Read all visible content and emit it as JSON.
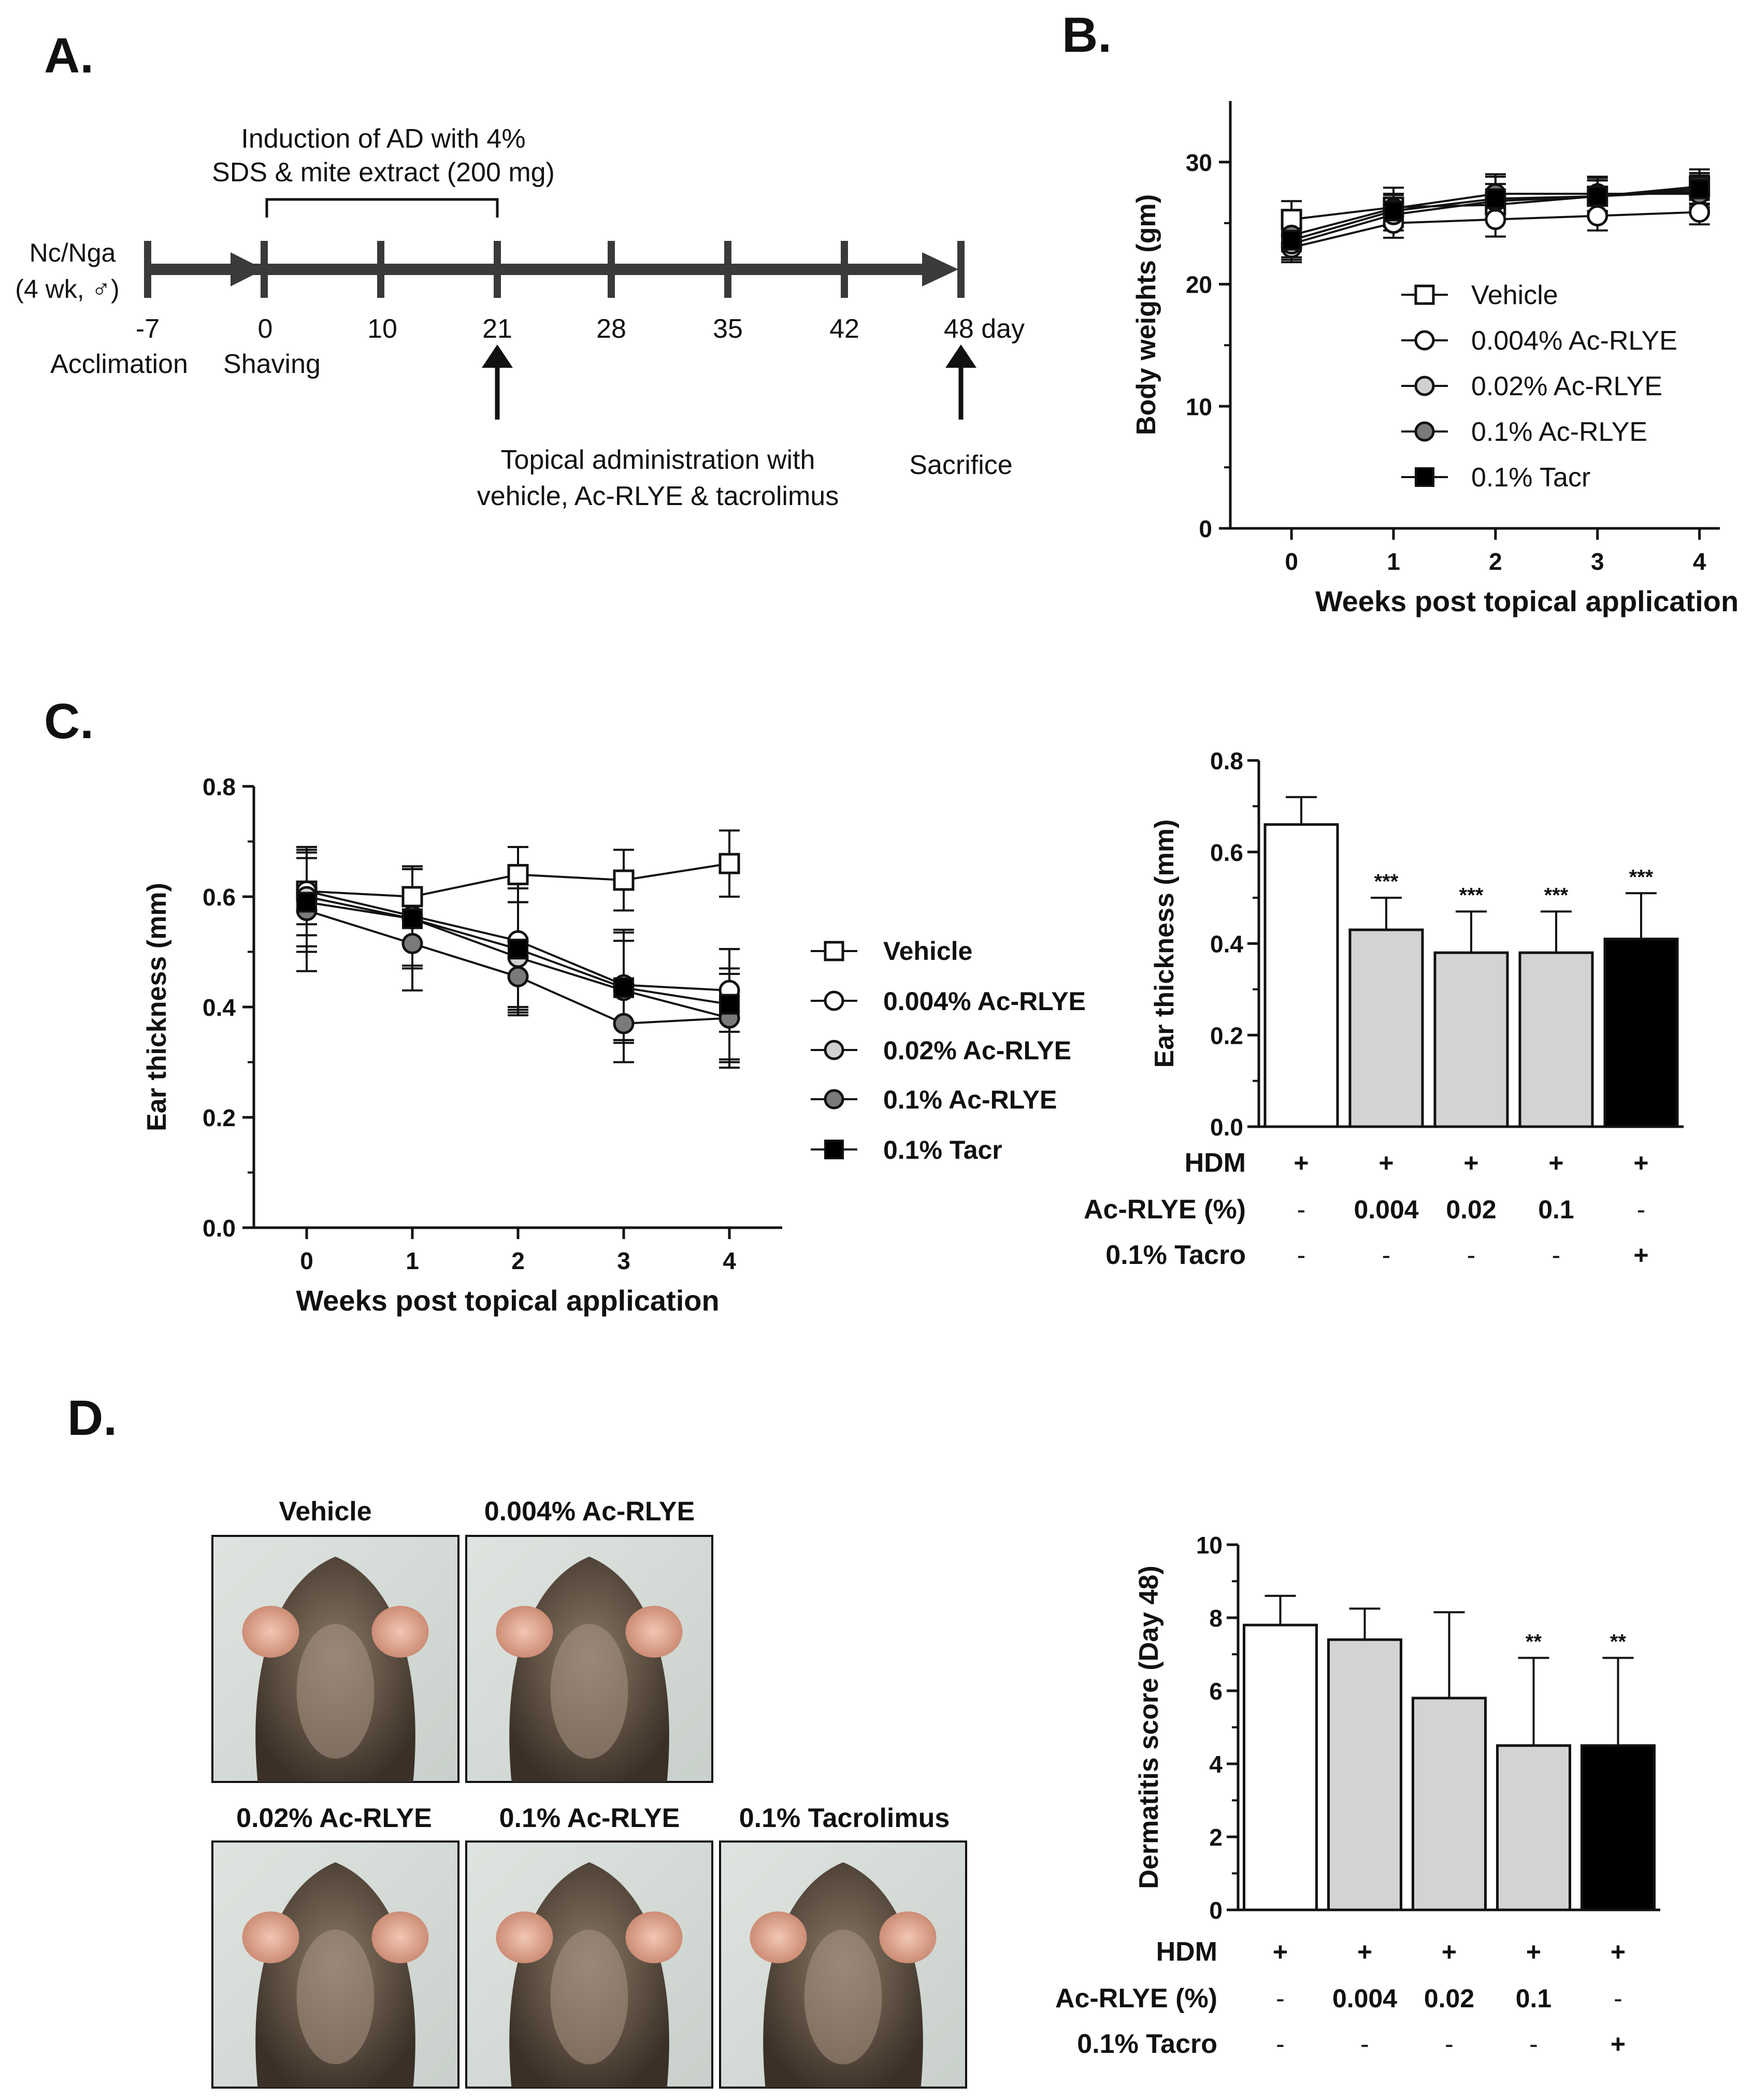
{
  "panels": {
    "A": "A.",
    "B": "B.",
    "C": "C.",
    "D": "D."
  },
  "timeline": {
    "subject_line1": "Nc/Nga",
    "subject_line2": "(4 wk, ♂)",
    "induction_line1": "Induction of AD with 4%",
    "induction_line2": "SDS & mite extract (200 mg)",
    "ticks": [
      "-7",
      "0",
      "10",
      "21",
      "28",
      "35",
      "42",
      "48 day"
    ],
    "acclimation": "Acclimation",
    "shaving": "Shaving",
    "topical_line1": "Topical administration with",
    "topical_line2": "vehicle, Ac-RLYE & tacrolimus",
    "sacrifice": "Sacrifice"
  },
  "legend": {
    "vehicle": "Vehicle",
    "ac004": "0.004% Ac-RLYE",
    "ac002": "0.02% Ac-RLYE",
    "ac01": "0.1% Ac-RLYE",
    "tacr": "0.1% Tacr"
  },
  "colors": {
    "vehicle": "#ffffff",
    "ac004": "#ffffff",
    "ac002": "#d0d0d0",
    "ac01": "#7a7a7a",
    "tacr": "#000000",
    "bar_gray": "#d3d3d3"
  },
  "condition_table": {
    "hdm_label": "HDM",
    "ac_label": "Ac-RLYE (%)",
    "tacro_label": "0.1% Tacro",
    "hdm": [
      "+",
      "+",
      "+",
      "+",
      "+"
    ],
    "ac": [
      "-",
      "0.004",
      "0.02",
      "0.1",
      "-"
    ],
    "tacro": [
      "-",
      "-",
      "-",
      "-",
      "+"
    ]
  },
  "photos": {
    "labels": [
      "Vehicle",
      "0.004% Ac-RLYE",
      "0.02% Ac-RLYE",
      "0.1% Ac-RLYE",
      "0.1% Tacrolimus"
    ]
  },
  "chart_data": [
    {
      "id": "B",
      "type": "line",
      "xlabel": "Weeks post topical application",
      "ylabel": "Body weights (gm)",
      "x": [
        0,
        1,
        2,
        3,
        4
      ],
      "xlim": [
        -0.6,
        4.2
      ],
      "ylim": [
        0,
        35
      ],
      "yticks": [
        0,
        10,
        20,
        30
      ],
      "series": [
        {
          "name": "Vehicle",
          "marker": "square-open",
          "values": [
            25.3,
            26.3,
            26.5,
            27.2,
            28.0
          ],
          "err": [
            1.5,
            1.6,
            1.2,
            1.5,
            1.4
          ]
        },
        {
          "name": "0.004% Ac-RLYE",
          "marker": "circle-open",
          "values": [
            23.0,
            25.0,
            25.3,
            25.6,
            25.9
          ],
          "err": [
            1.2,
            1.2,
            1.4,
            1.2,
            1.0
          ]
        },
        {
          "name": "0.02% Ac-RLYE",
          "marker": "circle-gray",
          "values": [
            23.3,
            25.7,
            26.8,
            27.2,
            27.6
          ],
          "err": [
            1.3,
            1.3,
            1.4,
            1.3,
            1.3
          ]
        },
        {
          "name": "0.1% Ac-RLYE",
          "marker": "circle-dark",
          "values": [
            24.0,
            26.2,
            27.4,
            27.4,
            27.4
          ],
          "err": [
            1.3,
            1.2,
            1.6,
            1.4,
            1.2
          ]
        },
        {
          "name": "0.1% Tacr",
          "marker": "square-filled",
          "values": [
            23.6,
            26.0,
            27.0,
            27.2,
            27.8
          ],
          "err": [
            1.4,
            1.3,
            1.8,
            1.3,
            1.3
          ]
        }
      ]
    },
    {
      "id": "C-line",
      "type": "line",
      "xlabel": "Weeks post topical application",
      "ylabel": "Ear thickness (mm)",
      "x": [
        0,
        1,
        2,
        3,
        4
      ],
      "xlim": [
        -0.5,
        4.5
      ],
      "ylim": [
        0,
        0.8
      ],
      "yticks": [
        0.0,
        0.2,
        0.4,
        0.6,
        0.8
      ],
      "series": [
        {
          "name": "Vehicle",
          "marker": "square-open",
          "values": [
            0.61,
            0.6,
            0.64,
            0.63,
            0.66
          ],
          "err": [
            0.06,
            0.05,
            0.05,
            0.055,
            0.06
          ]
        },
        {
          "name": "0.004% Ac-RLYE",
          "marker": "circle-open",
          "values": [
            0.61,
            0.565,
            0.52,
            0.44,
            0.43
          ],
          "err": [
            0.08,
            0.09,
            0.12,
            0.1,
            0.075
          ]
        },
        {
          "name": "0.02% Ac-RLYE",
          "marker": "circle-gray",
          "values": [
            0.6,
            0.56,
            0.49,
            0.43,
            0.38
          ],
          "err": [
            0.09,
            0.09,
            0.1,
            0.09,
            0.08
          ]
        },
        {
          "name": "0.1% Ac-RLYE",
          "marker": "circle-dark",
          "values": [
            0.575,
            0.515,
            0.455,
            0.37,
            0.38
          ],
          "err": [
            0.11,
            0.085,
            0.07,
            0.07,
            0.09
          ]
        },
        {
          "name": "0.1% Tacr",
          "marker": "square-filled",
          "values": [
            0.59,
            0.56,
            0.505,
            0.435,
            0.405
          ],
          "err": [
            0.09,
            0.09,
            0.11,
            0.1,
            0.1
          ]
        }
      ]
    },
    {
      "id": "C-bar",
      "type": "bar",
      "ylabel": "Ear thickness (mm)",
      "ylim": [
        0,
        0.8
      ],
      "yticks": [
        0.0,
        0.2,
        0.4,
        0.6,
        0.8
      ],
      "values": [
        0.66,
        0.43,
        0.38,
        0.38,
        0.41
      ],
      "err": [
        0.06,
        0.07,
        0.09,
        0.09,
        0.1
      ],
      "annotations": [
        "",
        "***",
        "***",
        "***",
        "***"
      ]
    },
    {
      "id": "D-bar",
      "type": "bar",
      "ylabel": "Dermatitis score (Day 48)",
      "ylim": [
        0,
        10
      ],
      "yticks": [
        0,
        2,
        4,
        6,
        8,
        10
      ],
      "values": [
        7.8,
        7.4,
        5.8,
        4.5,
        4.5
      ],
      "err": [
        0.8,
        0.85,
        2.35,
        2.4,
        2.4
      ],
      "annotations": [
        "",
        "",
        "",
        "**",
        "**"
      ]
    }
  ]
}
